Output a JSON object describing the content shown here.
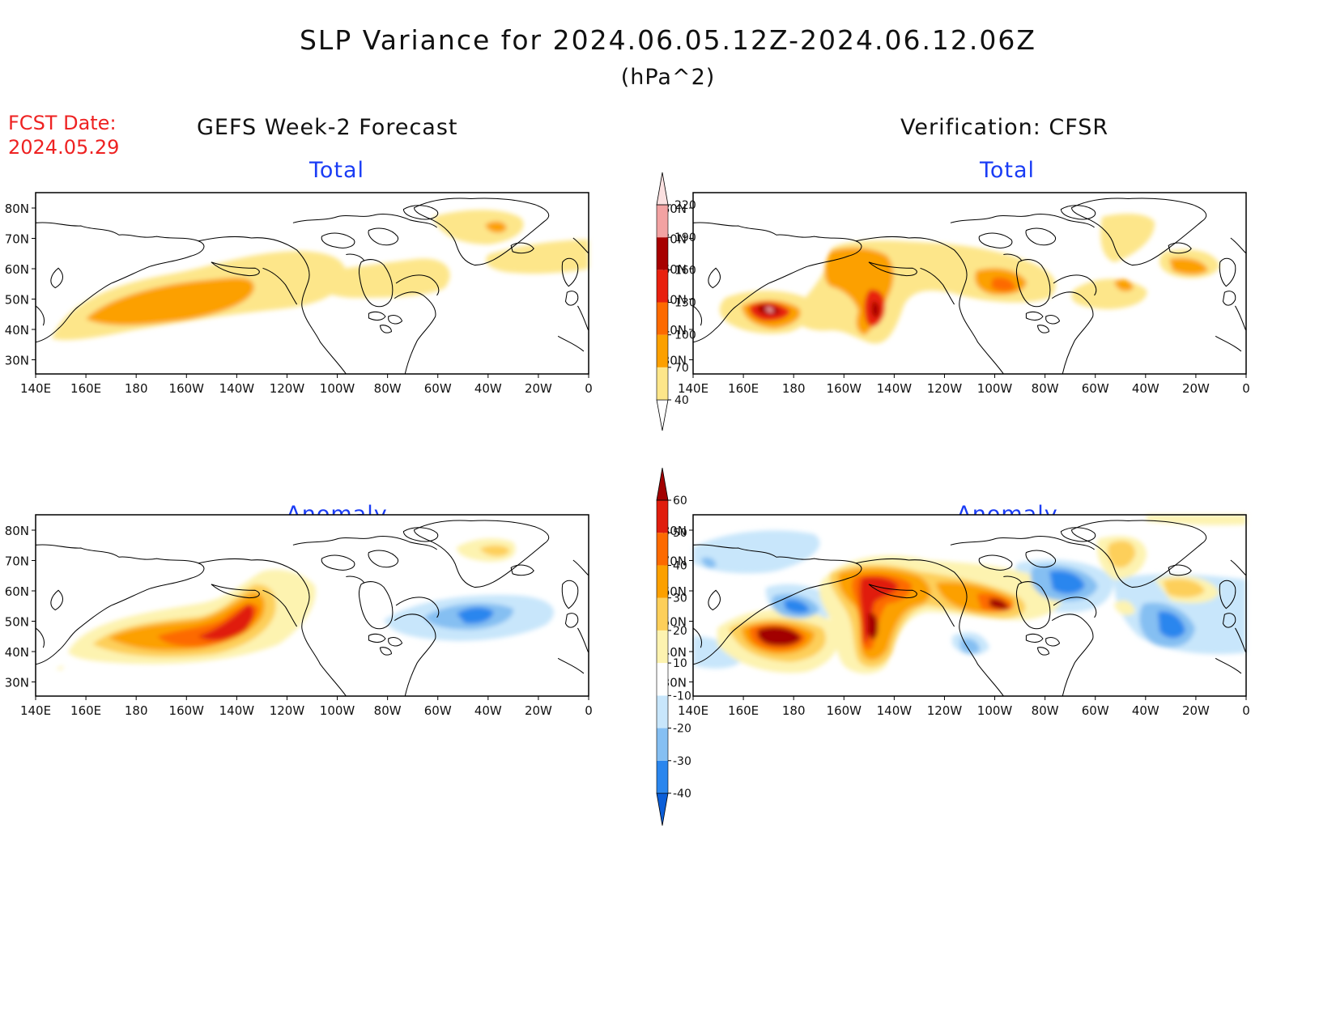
{
  "title": "SLP Variance for 2024.06.05.12Z-2024.06.12.06Z",
  "units": "(hPa^2)",
  "fcst_date_label": "FCST Date:",
  "fcst_date": "2024.05.29",
  "left_column_title": "GEFS Week-2 Forecast",
  "right_column_title": "Verification: CFSR",
  "panels": {
    "top_left": {
      "title": "Total"
    },
    "top_right": {
      "title": "Total"
    },
    "bottom_left": {
      "title": "Anomaly"
    },
    "bottom_right": {
      "title": "Anomaly"
    }
  },
  "map_axes": {
    "lon_labels": [
      "140E",
      "160E",
      "180",
      "160W",
      "140W",
      "120W",
      "100W",
      "80W",
      "60W",
      "40W",
      "20W",
      "0"
    ],
    "lat_labels": [
      "80N",
      "70N",
      "60N",
      "50N",
      "40N",
      "30N"
    ]
  },
  "colorbar_total": {
    "levels": [
      "40",
      "70",
      "100",
      "130",
      "160",
      "190",
      "220"
    ],
    "colors": [
      "#fde68a",
      "#fca000",
      "#fd6a00",
      "#e8200e",
      "#a70000",
      "#f2a2a2",
      "#fbe0e0"
    ]
  },
  "colorbar_anomaly": {
    "levels": [
      "-40",
      "-30",
      "-20",
      "-10",
      "10",
      "20",
      "30",
      "40",
      "50",
      "60"
    ],
    "colors": [
      "#0b5ed8",
      "#2a86ee",
      "#85bff2",
      "#c8e6fb",
      "#ffffff",
      "#fdf3b0",
      "#fdcf5a",
      "#fca000",
      "#fd6a00",
      "#e01d0d",
      "#a20000"
    ]
  }
}
